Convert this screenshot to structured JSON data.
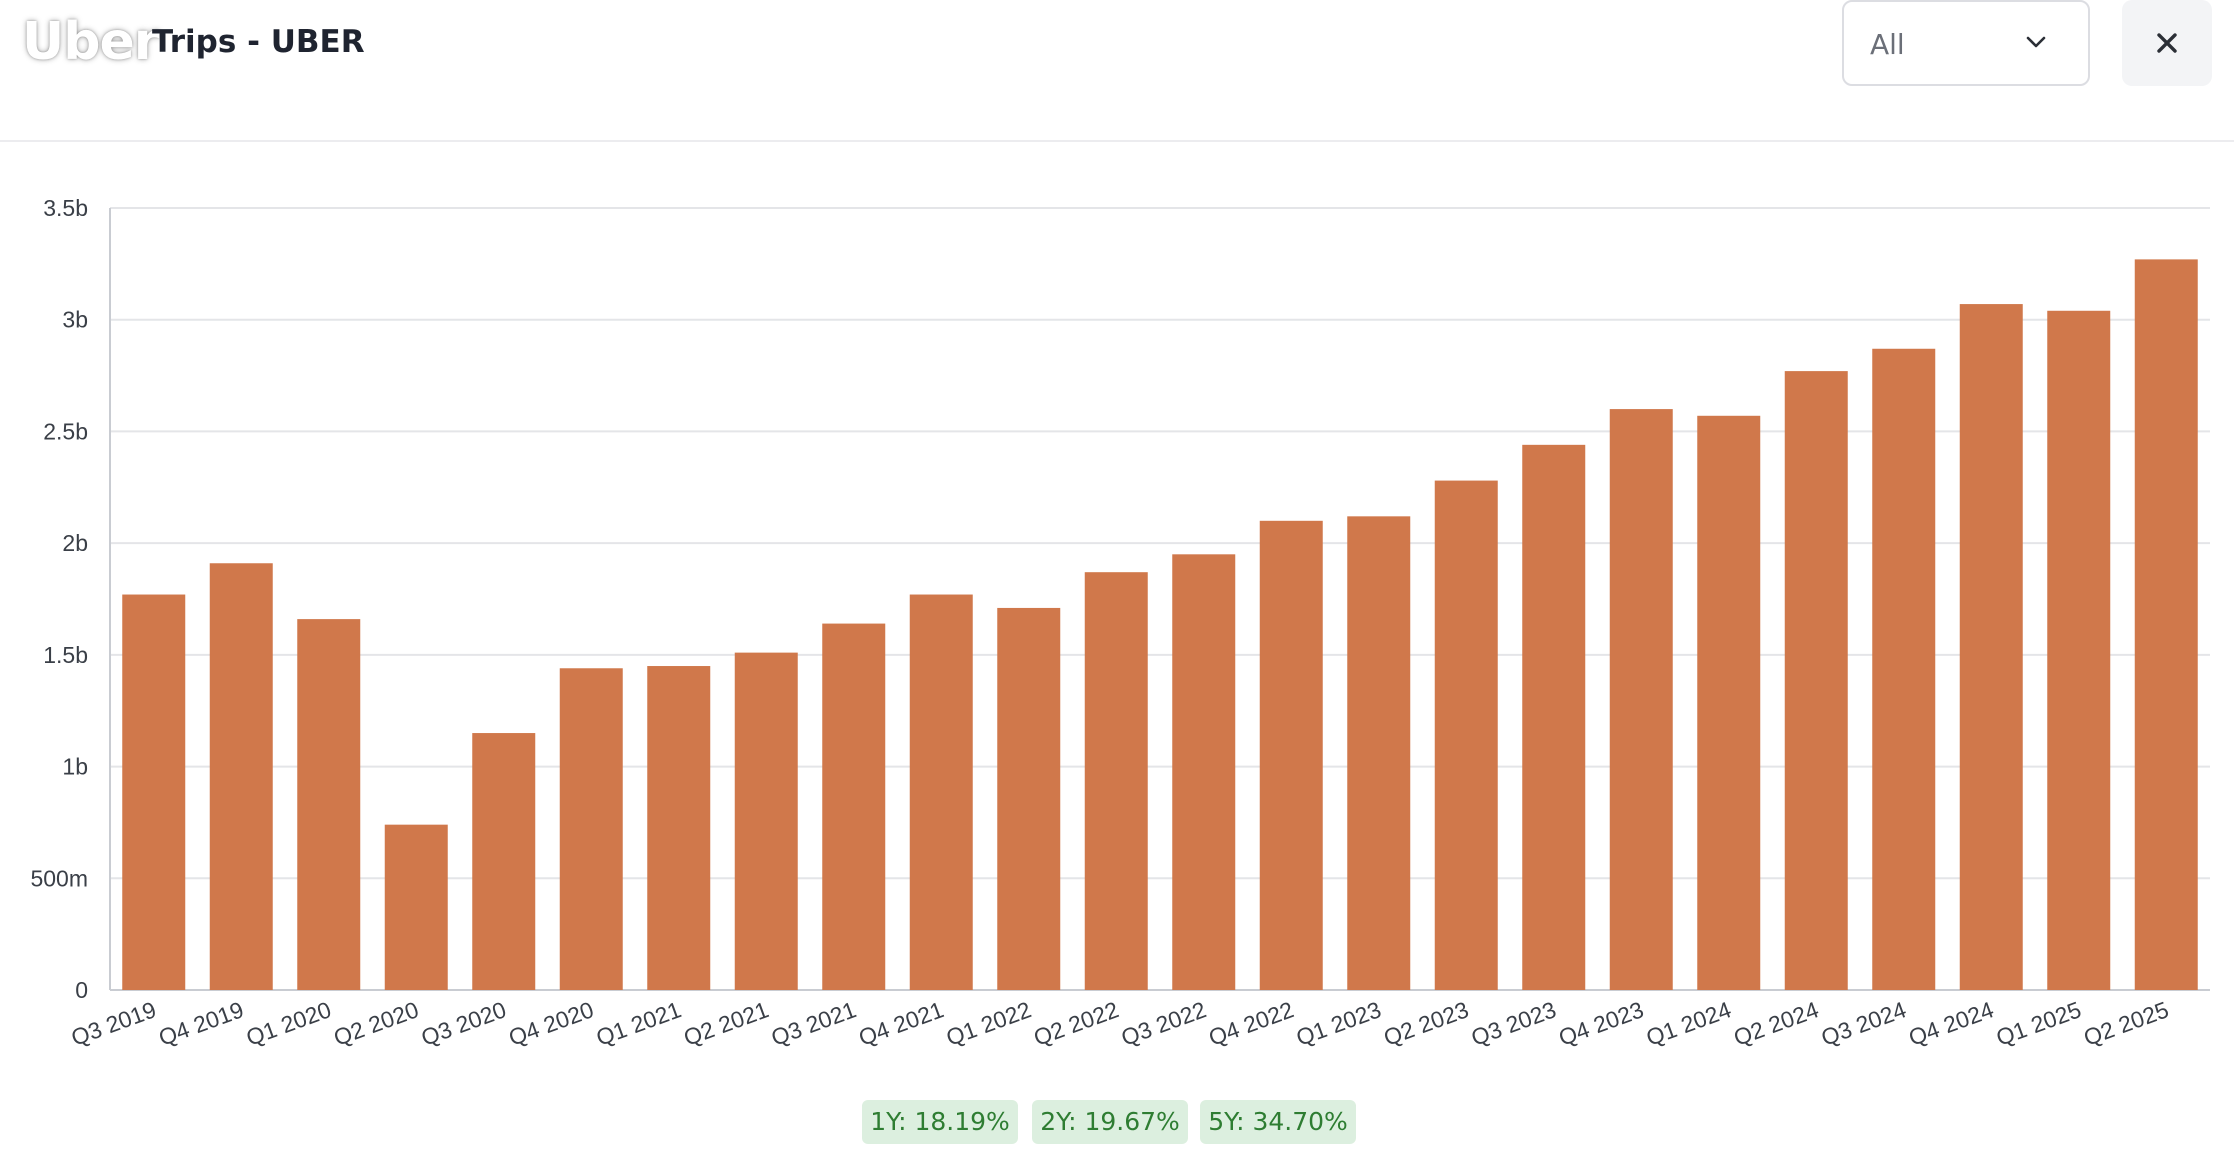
{
  "header": {
    "logo_text": "Uber",
    "title": "Trips - UBER",
    "range_select": {
      "value": "All"
    },
    "close_symbol": "✕"
  },
  "chart_data": {
    "type": "bar",
    "title": "Trips - UBER",
    "xlabel": "",
    "ylabel": "",
    "categories": [
      "Q3 2019",
      "Q4 2019",
      "Q1 2020",
      "Q2 2020",
      "Q3 2020",
      "Q4 2020",
      "Q1 2021",
      "Q2 2021",
      "Q3 2021",
      "Q4 2021",
      "Q1 2022",
      "Q2 2022",
      "Q3 2022",
      "Q4 2022",
      "Q1 2023",
      "Q2 2023",
      "Q3 2023",
      "Q4 2023",
      "Q1 2024",
      "Q2 2024",
      "Q3 2024",
      "Q4 2024",
      "Q1 2025",
      "Q2 2025"
    ],
    "values": [
      1.77,
      1.91,
      1.66,
      0.74,
      1.15,
      1.44,
      1.45,
      1.51,
      1.64,
      1.77,
      1.71,
      1.87,
      1.95,
      2.1,
      2.12,
      2.28,
      2.44,
      2.6,
      2.57,
      2.77,
      2.87,
      3.07,
      3.04,
      3.27
    ],
    "value_unit": "billions",
    "ylim": [
      0,
      3.5
    ],
    "y_ticks": [
      {
        "value": 0,
        "label": "0"
      },
      {
        "value": 0.5,
        "label": "500m"
      },
      {
        "value": 1,
        "label": "1b"
      },
      {
        "value": 1.5,
        "label": "1.5b"
      },
      {
        "value": 2,
        "label": "2b"
      },
      {
        "value": 2.5,
        "label": "2.5b"
      },
      {
        "value": 3,
        "label": "3b"
      },
      {
        "value": 3.5,
        "label": "3.5b"
      }
    ],
    "grid": true,
    "bar_color": "#d0784b"
  },
  "growth_badges": [
    {
      "label": "1Y: 18.19%"
    },
    {
      "label": "2Y: 19.67%"
    },
    {
      "label": "5Y: 34.70%"
    }
  ]
}
